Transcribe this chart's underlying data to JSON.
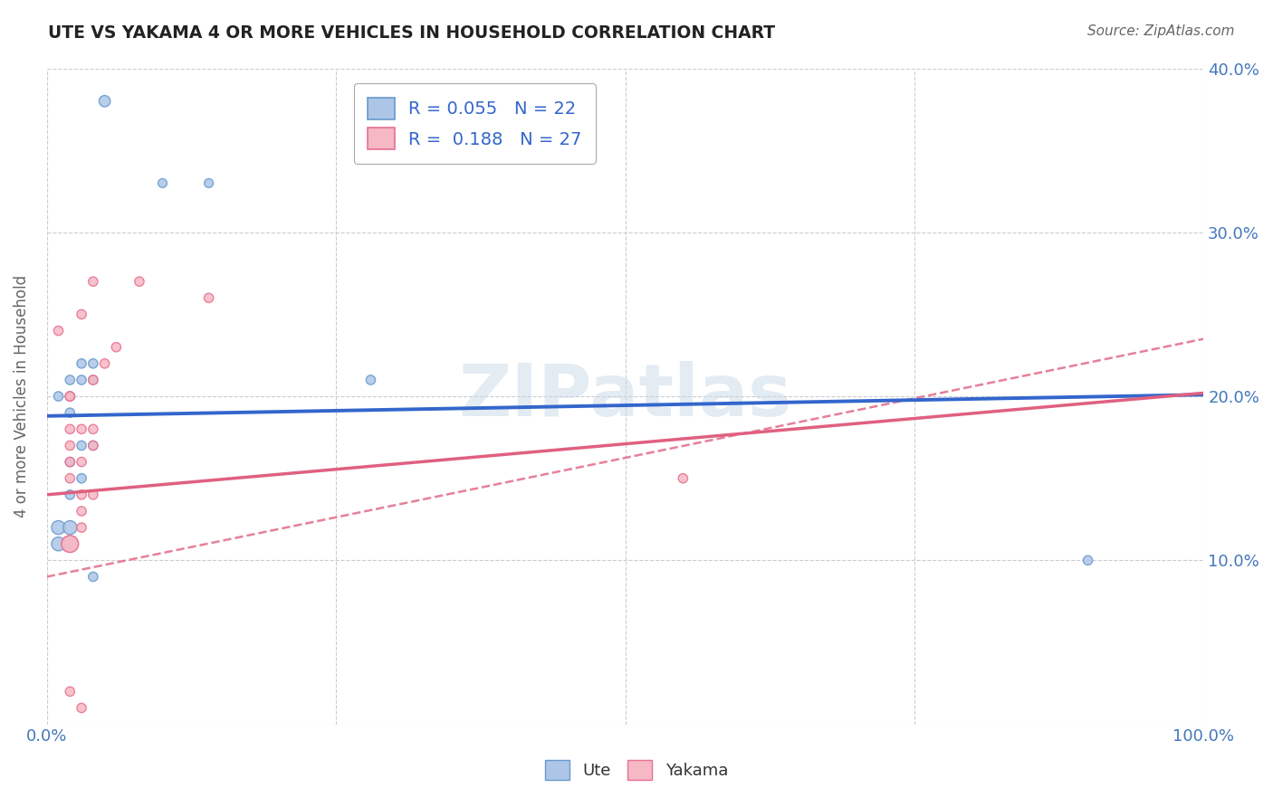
{
  "title": "UTE VS YAKAMA 4 OR MORE VEHICLES IN HOUSEHOLD CORRELATION CHART",
  "source": "Source: ZipAtlas.com",
  "ylabel": "4 or more Vehicles in Household",
  "xlim": [
    0,
    100
  ],
  "ylim": [
    0,
    40
  ],
  "grid_color": "#cccccc",
  "background_color": "#ffffff",
  "ute_R": 0.055,
  "ute_N": 22,
  "yakama_R": 0.188,
  "yakama_N": 27,
  "ute_color": "#adc6e8",
  "ute_edge_color": "#6699cc",
  "yakama_color": "#f5b8c4",
  "yakama_edge_color": "#e87090",
  "ute_line_color": "#3366cc",
  "yakama_line_color": "#e06080",
  "watermark": "ZIPatlas",
  "watermark_color": "#c8d8e8",
  "ute_x": [
    5,
    10,
    14,
    1,
    2,
    3,
    3,
    2,
    4,
    2,
    4,
    4,
    2,
    3,
    3,
    2,
    1,
    1,
    2,
    90,
    4,
    28
  ],
  "ute_y": [
    38,
    33,
    33,
    20,
    21,
    22,
    21,
    20,
    21,
    19,
    22,
    17,
    16,
    17,
    15,
    14,
    12,
    11,
    12,
    10,
    9,
    21
  ],
  "ute_size": [
    80,
    50,
    50,
    55,
    55,
    55,
    55,
    55,
    55,
    55,
    55,
    55,
    55,
    55,
    55,
    55,
    120,
    120,
    120,
    55,
    55,
    55
  ],
  "yakama_x": [
    2,
    4,
    8,
    14,
    1,
    3,
    4,
    6,
    2,
    2,
    3,
    4,
    5,
    2,
    3,
    4,
    2,
    2,
    3,
    4,
    3,
    3,
    2,
    2,
    55,
    3,
    2
  ],
  "yakama_y": [
    20,
    27,
    27,
    26,
    24,
    25,
    21,
    23,
    20,
    18,
    18,
    18,
    22,
    17,
    16,
    17,
    16,
    15,
    14,
    14,
    13,
    12,
    11,
    11,
    15,
    1,
    2
  ],
  "yakama_size": [
    55,
    55,
    55,
    55,
    55,
    55,
    55,
    55,
    55,
    55,
    55,
    55,
    55,
    55,
    55,
    55,
    55,
    55,
    55,
    55,
    55,
    55,
    180,
    180,
    55,
    55,
    55
  ],
  "ute_line_x0": 0,
  "ute_line_y0": 18.8,
  "ute_line_x1": 100,
  "ute_line_y1": 20.1,
  "yakama_line_x0": 0,
  "yakama_line_y0": 14.0,
  "yakama_line_x1": 100,
  "yakama_line_y1": 20.2,
  "yakama_dashed_x0": 0,
  "yakama_dashed_y0": 9.0,
  "yakama_dashed_x1": 100,
  "yakama_dashed_y1": 23.5
}
